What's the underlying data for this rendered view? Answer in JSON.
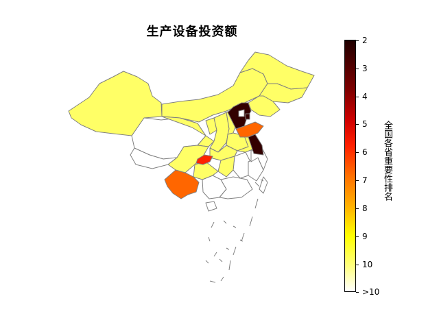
{
  "title": "生产设备投资额",
  "colorbar": {
    "label": "全国各省重要性排名",
    "ticks": [
      "2",
      "3",
      "4",
      "5",
      "6",
      "7",
      "8",
      "9",
      "10",
      ">10"
    ],
    "colormap": "hot_r"
  },
  "map_data": {
    "metric": "全国各省重要性排名",
    "ranked_regions": [
      {
        "region": "北京",
        "rank": 2
      },
      {
        "region": "河北",
        "rank": 2
      },
      {
        "region": "江苏",
        "rank": 2
      },
      {
        "region": "山东",
        "rank": 7
      },
      {
        "region": "云南",
        "rank": 7
      },
      {
        "region": "重庆",
        "rank": 6
      },
      {
        "region": "新疆",
        "rank": 10
      },
      {
        "region": "内蒙古",
        "rank": 10
      },
      {
        "region": "黑龙江",
        "rank": 10
      },
      {
        "region": "吉林",
        "rank": 10
      },
      {
        "region": "辽宁",
        "rank": 10
      },
      {
        "region": "甘肃",
        "rank": 10
      },
      {
        "region": "宁夏",
        "rank": 10
      },
      {
        "region": "陕西",
        "rank": 10
      },
      {
        "region": "山西",
        "rank": 10
      },
      {
        "region": "河南",
        "rank": 10
      },
      {
        "region": "安徽",
        "rank": 10
      },
      {
        "region": "四川",
        "rank": 10
      },
      {
        "region": "湖北",
        "rank": 10
      },
      {
        "region": "湖南",
        "rank": 10
      },
      {
        "region": "贵州",
        "rank": 10
      }
    ],
    "unranked_color": "#ffffff",
    "border_color": "#808080"
  }
}
